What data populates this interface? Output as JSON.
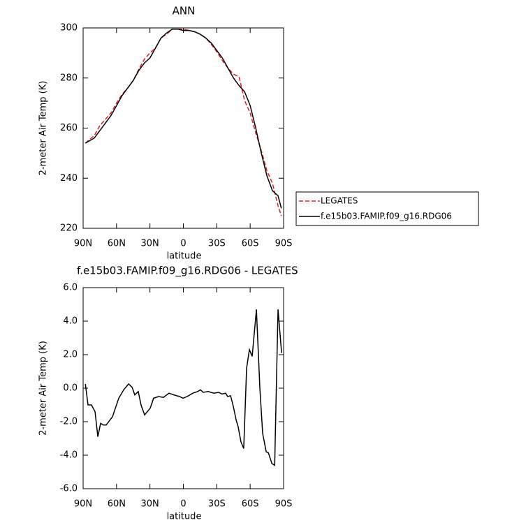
{
  "chart_data": [
    {
      "type": "line",
      "title": "ANN",
      "xlabel": "latitude",
      "ylabel": "2-meter Air Temp (K)",
      "xlim": [
        90,
        -90
      ],
      "ylim": [
        220,
        300
      ],
      "xticks": [
        {
          "value": 90,
          "label": "90N"
        },
        {
          "value": 60,
          "label": "60N"
        },
        {
          "value": 30,
          "label": "30N"
        },
        0,
        {
          "value": -30,
          "label": "30S"
        },
        {
          "value": -60,
          "label": "60S"
        },
        {
          "value": -90,
          "label": "90S"
        }
      ],
      "yticks": [
        220,
        240,
        260,
        280,
        300
      ],
      "legend": "right",
      "series": [
        {
          "name": "LEGATES",
          "color": "#e41a1c",
          "dash": true,
          "x": [
            88,
            80,
            75,
            70,
            65,
            60,
            55,
            50,
            45,
            40,
            35,
            30,
            25,
            20,
            15,
            10,
            5,
            0,
            -5,
            -10,
            -15,
            -20,
            -25,
            -30,
            -35,
            -40,
            -45,
            -50,
            -55,
            -60,
            -65,
            -70,
            -75,
            -80,
            -85,
            -88
          ],
          "values": [
            254,
            257,
            261,
            263.5,
            266,
            270,
            273.5,
            276,
            279,
            283.5,
            287.5,
            290,
            292,
            296,
            297.5,
            299.5,
            299.5,
            299.5,
            299,
            298.5,
            297.5,
            296,
            293.5,
            290.5,
            287,
            284,
            281.5,
            280.5,
            271,
            266,
            258,
            251,
            243,
            238,
            229,
            225
          ]
        },
        {
          "name": "f.e15b03.FAMIP.f09_g16.RDG06",
          "color": "#000000",
          "dash": false,
          "x": [
            88,
            80,
            75,
            70,
            65,
            60,
            55,
            50,
            45,
            40,
            35,
            30,
            25,
            20,
            15,
            10,
            5,
            0,
            -5,
            -10,
            -15,
            -20,
            -25,
            -30,
            -35,
            -40,
            -45,
            -50,
            -55,
            -60,
            -65,
            -70,
            -75,
            -80,
            -85,
            -88
          ],
          "values": [
            254,
            256,
            259,
            262,
            265,
            269,
            273,
            276,
            279,
            283,
            286,
            288,
            292,
            296,
            298,
            299.5,
            299.5,
            299,
            299,
            298.5,
            297.5,
            296,
            294,
            291,
            288,
            284,
            280,
            277,
            274.5,
            269,
            260,
            250,
            241,
            235,
            233,
            228
          ]
        }
      ]
    },
    {
      "type": "line",
      "title": "f.e15b03.FAMIP.f09_g16.RDG06 - LEGATES",
      "xlabel": "latitude",
      "ylabel": "2-meter Air Temp (K)",
      "xlim": [
        90,
        -90
      ],
      "ylim": [
        -6,
        6
      ],
      "xticks": [
        {
          "value": 90,
          "label": "90N"
        },
        {
          "value": 60,
          "label": "60N"
        },
        {
          "value": 30,
          "label": "30N"
        },
        0,
        {
          "value": -30,
          "label": "30S"
        },
        {
          "value": -60,
          "label": "60S"
        },
        {
          "value": -90,
          "label": "90S"
        }
      ],
      "yticks": [
        {
          "value": -6,
          "label": "-6.0"
        },
        {
          "value": -4,
          "label": "-4.0"
        },
        {
          "value": -2,
          "label": "-2.0"
        },
        {
          "value": 0,
          "label": "0.0"
        },
        {
          "value": 2,
          "label": "2.0"
        },
        {
          "value": 4,
          "label": "4.0"
        },
        {
          "value": 6,
          "label": "6.0"
        }
      ],
      "series": [
        {
          "color": "#000000",
          "dash": false,
          "x": [
            88,
            85.6,
            82.5,
            79.3,
            76.8,
            74.3,
            71.8,
            69.3,
            63.6,
            58,
            53.6,
            49.2,
            46,
            43.6,
            40.5,
            38,
            34.8,
            29.8,
            26.7,
            22.3,
            17.9,
            12.9,
            8.5,
            3.5,
            0.3,
            -3.4,
            -8.5,
            -12.9,
            -15.4,
            -17.9,
            -22.3,
            -27.3,
            -31.7,
            -34.8,
            -38,
            -39.8,
            -42.4,
            -44.9,
            -47.4,
            -49.2,
            -51.7,
            -54.2,
            -56.8,
            -59.3,
            -61.8,
            -65.6,
            -68.7,
            -71.2,
            -74.4,
            -76.3,
            -79.5,
            -82,
            -85,
            -88.2
          ],
          "values": [
            0.25,
            -1.0,
            -1.0,
            -1.4,
            -2.9,
            -2.1,
            -2.2,
            -2.2,
            -1.7,
            -0.6,
            -0.1,
            0.25,
            0.05,
            -0.4,
            -0.2,
            -1.0,
            -1.6,
            -1.2,
            -0.6,
            -0.5,
            -0.55,
            -0.3,
            -0.4,
            -0.5,
            -0.6,
            -0.5,
            -0.3,
            -0.2,
            -0.1,
            -0.25,
            -0.2,
            -0.3,
            -0.25,
            -0.35,
            -0.3,
            -0.5,
            -0.45,
            -1.1,
            -1.9,
            -2.3,
            -3.2,
            -3.6,
            1.2,
            2.3,
            1.9,
            4.7,
            0.0,
            -2.7,
            -3.8,
            -3.85,
            -4.5,
            -4.6,
            4.7,
            2.1
          ]
        }
      ]
    }
  ]
}
